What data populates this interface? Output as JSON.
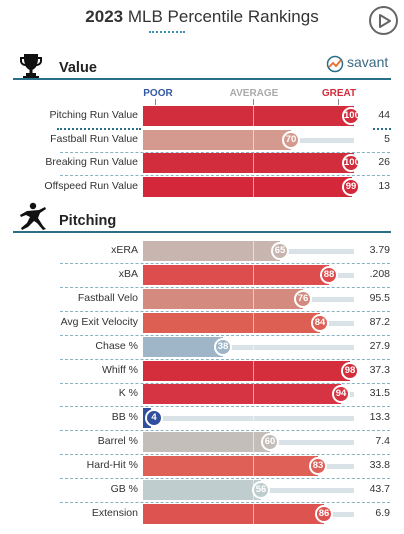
{
  "header": {
    "year": "2023",
    "title_rest": "MLB Percentile Rankings",
    "brand": "savant"
  },
  "scale": {
    "poor": "POOR",
    "average": "AVERAGE",
    "great": "GREAT"
  },
  "sections": [
    {
      "title": "Value",
      "icon": "trophy-icon"
    },
    {
      "title": "Pitching",
      "icon": "pitcher-icon"
    }
  ],
  "colors": {
    "great": "#d22d3c",
    "poor": "#3358a4",
    "average": "#b9b9b9",
    "accent": "#2a6f88"
  },
  "chart_data": [
    {
      "type": "bar",
      "title": "Value",
      "xlim": [
        0,
        100
      ],
      "categories": [
        "Pitching Run Value",
        "Fastball Run Value",
        "Breaking Run Value",
        "Offspeed Run Value"
      ],
      "percentiles": [
        100,
        70,
        100,
        99
      ],
      "stat_values": [
        "44",
        "5",
        "26",
        "13"
      ],
      "bar_colors": [
        "#d22d3c",
        "#d59a8f",
        "#d22d3c",
        "#d4273a"
      ]
    },
    {
      "type": "bar",
      "title": "Pitching",
      "xlim": [
        0,
        100
      ],
      "categories": [
        "xERA",
        "xBA",
        "Fastball Velo",
        "Avg Exit Velocity",
        "Chase %",
        "Whiff %",
        "K %",
        "BB %",
        "Barrel %",
        "Hard-Hit %",
        "GB %",
        "Extension"
      ],
      "percentiles": [
        65,
        88,
        76,
        84,
        38,
        98,
        94,
        4,
        60,
        83,
        56,
        86
      ],
      "stat_values": [
        "3.79",
        ".208",
        "95.5",
        "87.2",
        "27.9",
        "37.3",
        "31.5",
        "13.3",
        "7.4",
        "33.8",
        "43.7",
        "6.9"
      ],
      "bar_colors": [
        "#c9b5b0",
        "#dd4d4e",
        "#d48a7f",
        "#dd5f53",
        "#9fb6c8",
        "#d42d3b",
        "#d63343",
        "#304f9d",
        "#c4beba",
        "#de6057",
        "#bfcdcf",
        "#dd5350"
      ]
    }
  ]
}
